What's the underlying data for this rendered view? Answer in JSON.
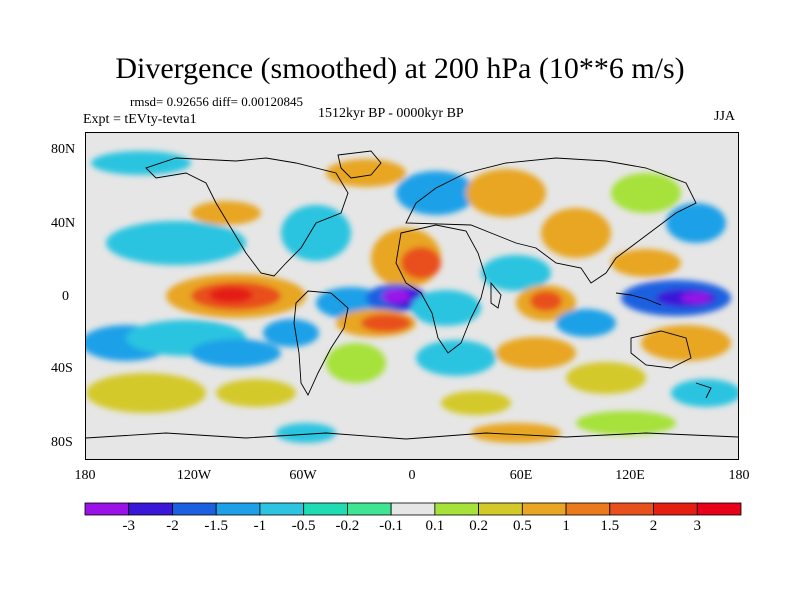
{
  "title": "Divergence (smoothed) at 200 hPa (10**6 m/s)",
  "stats": "rmsd= 0.92656 diff= 0.00120845",
  "period": "1512kyr BP - 0000kyr BP",
  "experiment": "Expt = tEVty-tevta1",
  "season": "JJA",
  "map": {
    "projection": "cylindrical equidistant",
    "lat_ticks": [
      "80N",
      "40N",
      "0",
      "40S",
      "80S"
    ],
    "lon_ticks": [
      "180",
      "120W",
      "60W",
      "0",
      "60E",
      "120E",
      "180"
    ]
  },
  "colorbar": {
    "labels": [
      "-3",
      "-2",
      "-1.5",
      "-1",
      "-0.5",
      "-0.2",
      "-0.1",
      "0.1",
      "0.2",
      "0.5",
      "1",
      "1.5",
      "2",
      "3"
    ],
    "colors": [
      "#9a12e8",
      "#3a17d8",
      "#1a60e0",
      "#1ea0e8",
      "#2cc4e0",
      "#20dcb4",
      "#3fe592",
      "#e6e6e6",
      "#a6e23a",
      "#d4c92a",
      "#e8a624",
      "#ea7a1c",
      "#e8501c",
      "#e41f12",
      "#e8001a"
    ]
  }
}
